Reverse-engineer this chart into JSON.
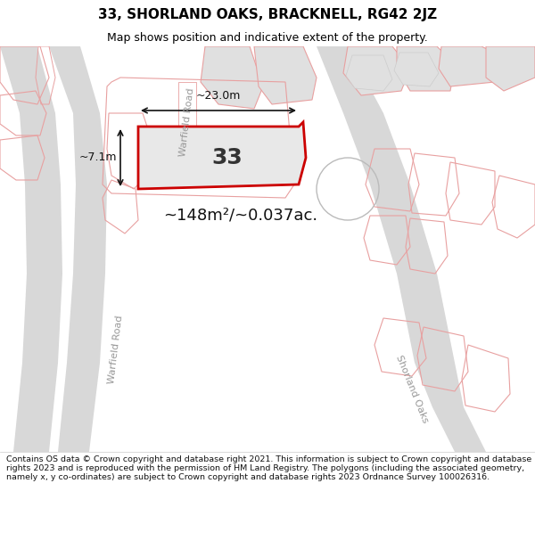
{
  "title": "33, SHORLAND OAKS, BRACKNELL, RG42 2JZ",
  "subtitle": "Map shows position and indicative extent of the property.",
  "area_text": "~148m²/~0.037ac.",
  "width_label": "~23.0m",
  "height_label": "~7.1m",
  "label_number": "33",
  "footer": "Contains OS data © Crown copyright and database right 2021. This information is subject to Crown copyright and database rights 2023 and is reproduced with the permission of HM Land Registry. The polygons (including the associated geometry, namely x, y co-ordinates) are subject to Crown copyright and database rights 2023 Ordnance Survey 100026316.",
  "bg_color": "#f5f5f5",
  "main_plot_fill": "#e8e8e8",
  "main_plot_edge": "#cc0000",
  "bg_plot_fill": "#e0e0e0",
  "bg_plot_edge": "#e8a0a0",
  "road_fill": "#d8d8d8",
  "road_edge": "#bbbbbb",
  "footer_bg": "#ffffff",
  "title_bg": "#ffffff",
  "road_label_color": "#999999",
  "dim_color": "#111111",
  "area_color": "#111111",
  "number_color": "#333333"
}
